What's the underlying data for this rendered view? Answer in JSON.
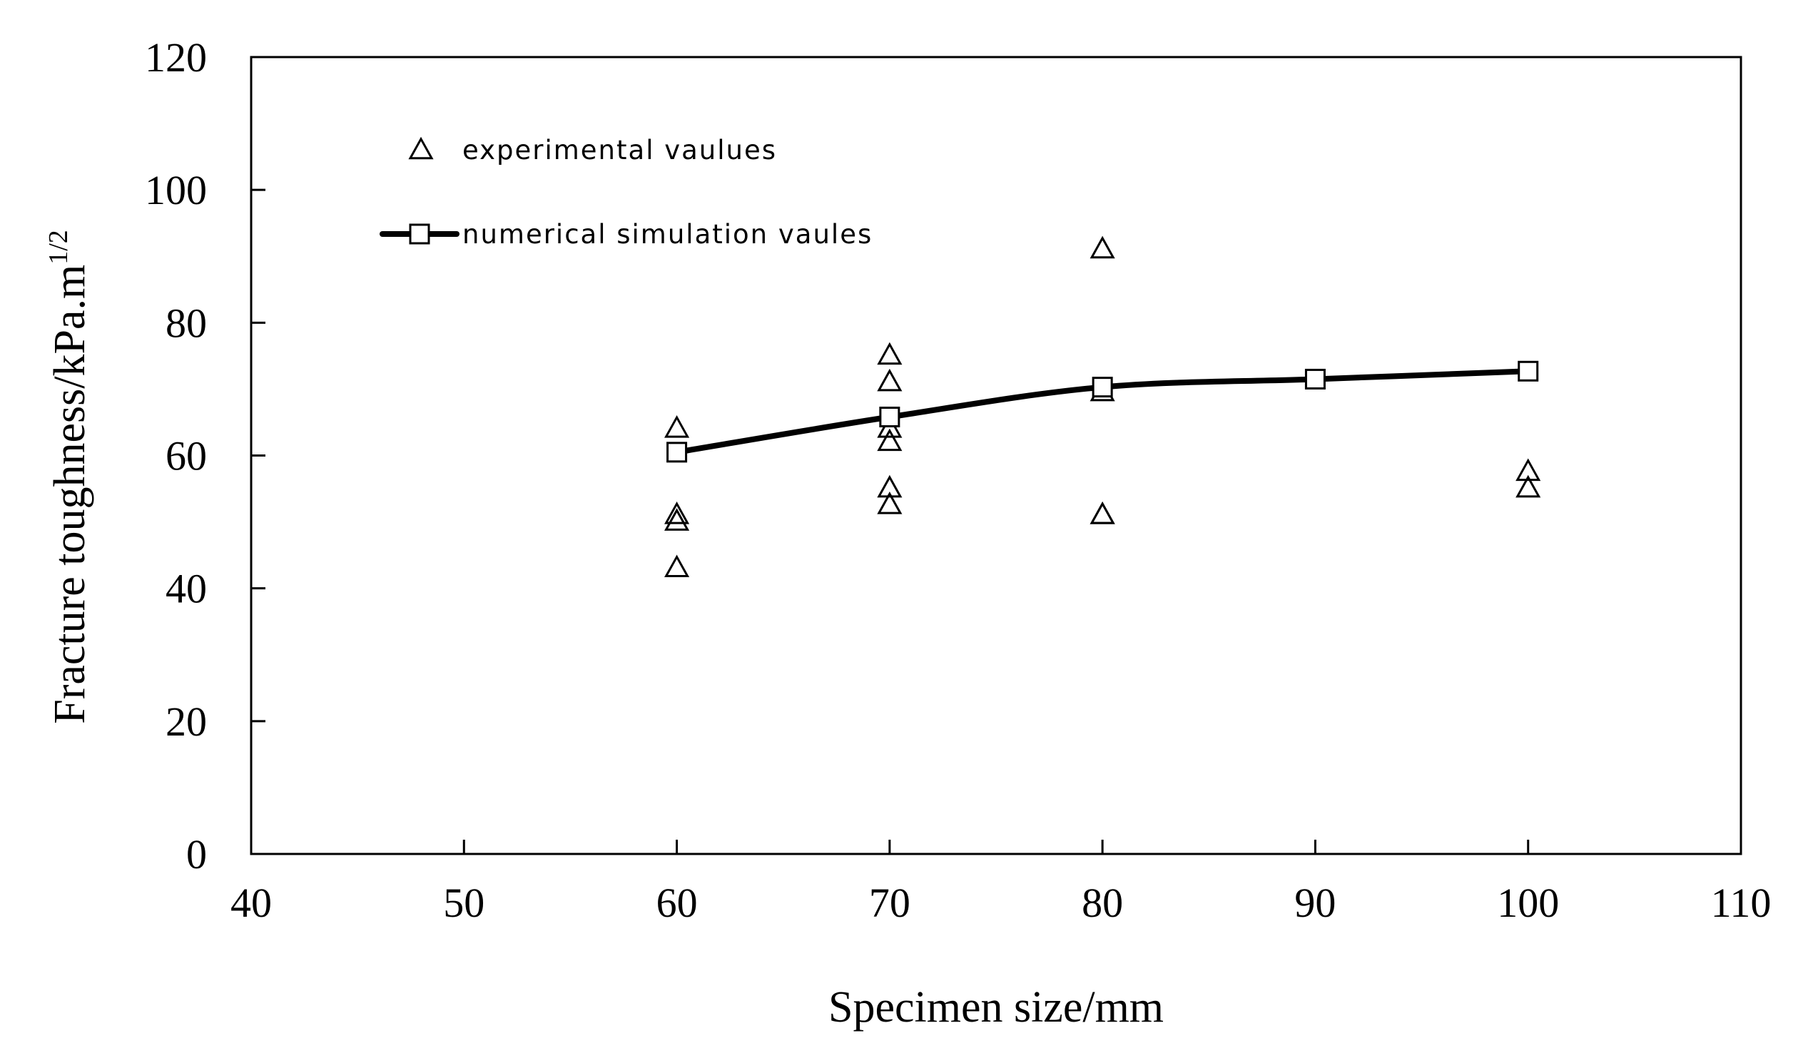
{
  "chart_data": {
    "type": "scatter",
    "title": "",
    "xlabel": "Specimen size/mm",
    "ylabel": "Fracture toughness/kPa.m",
    "ylabel_superscript": "1/2",
    "xlim": [
      40,
      110
    ],
    "ylim": [
      0,
      120
    ],
    "xticks": [
      40,
      50,
      60,
      70,
      80,
      90,
      100,
      110
    ],
    "yticks": [
      0,
      20,
      40,
      60,
      80,
      100,
      120
    ],
    "grid": false,
    "legend_position": "top-left",
    "series": [
      {
        "name": "experimental vaulues",
        "marker": "triangle-open",
        "line": false,
        "points": [
          {
            "x": 60,
            "y": 64
          },
          {
            "x": 60,
            "y": 51
          },
          {
            "x": 60,
            "y": 50
          },
          {
            "x": 60,
            "y": 43
          },
          {
            "x": 70,
            "y": 75
          },
          {
            "x": 70,
            "y": 71
          },
          {
            "x": 70,
            "y": 64
          },
          {
            "x": 70,
            "y": 62
          },
          {
            "x": 70,
            "y": 55
          },
          {
            "x": 70,
            "y": 52.5
          },
          {
            "x": 80,
            "y": 91
          },
          {
            "x": 80,
            "y": 69.5
          },
          {
            "x": 80,
            "y": 51
          },
          {
            "x": 80,
            "y": 51
          },
          {
            "x": 100,
            "y": 57.5
          },
          {
            "x": 100,
            "y": 55
          }
        ]
      },
      {
        "name": "numerical simulation vaules",
        "marker": "square-open",
        "line": true,
        "points": [
          {
            "x": 60,
            "y": 60.5
          },
          {
            "x": 70,
            "y": 65.8
          },
          {
            "x": 80,
            "y": 70.3
          },
          {
            "x": 90,
            "y": 71.5
          },
          {
            "x": 100,
            "y": 72.7
          }
        ]
      }
    ],
    "colors": {
      "axis": "#000000",
      "ylabel": "#6b2a1a",
      "series": "#000000"
    }
  }
}
